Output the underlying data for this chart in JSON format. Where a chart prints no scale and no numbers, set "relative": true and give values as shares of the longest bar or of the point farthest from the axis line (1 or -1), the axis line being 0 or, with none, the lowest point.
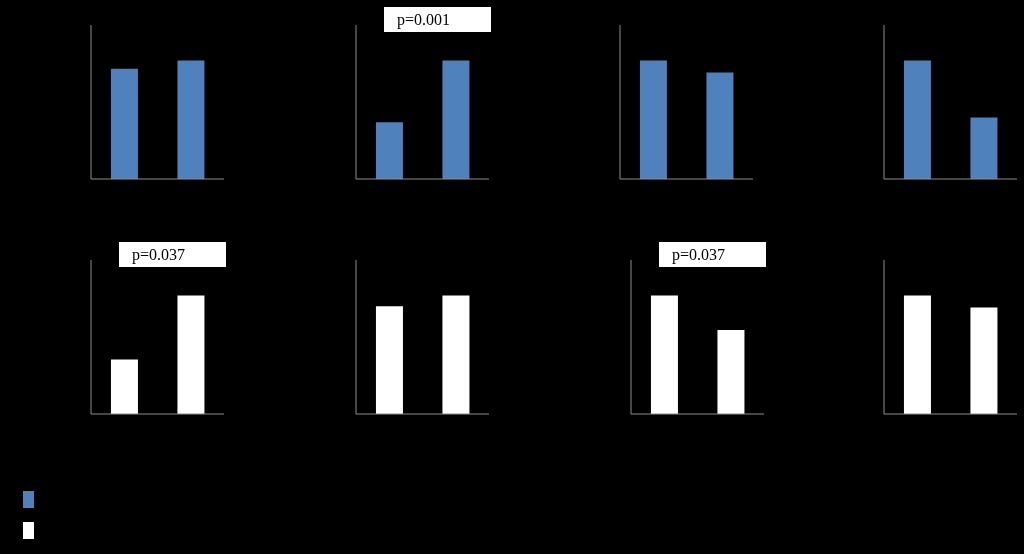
{
  "chart_data": [
    {
      "type": "bar",
      "categories": [
        null,
        null
      ],
      "values": [
        0.93,
        1
      ],
      "color": "#4f81bd",
      "relative": true
    },
    {
      "type": "bar",
      "categories": [
        null,
        null
      ],
      "values": [
        0.48,
        1
      ],
      "color": "#4f81bd",
      "relative": true,
      "annotations": [
        "p=0.001"
      ]
    },
    {
      "type": "bar",
      "categories": [
        null,
        null
      ],
      "values": [
        1,
        0.9
      ],
      "color": "#4f81bd",
      "relative": true
    },
    {
      "type": "bar",
      "categories": [
        null,
        null
      ],
      "values": [
        1,
        0.52
      ],
      "color": "#4f81bd",
      "relative": true
    },
    {
      "type": "bar",
      "categories": [
        null,
        null
      ],
      "values": [
        0.46,
        1
      ],
      "color": "#ffffff",
      "relative": true,
      "annotations": [
        "p=0.037"
      ]
    },
    {
      "type": "bar",
      "categories": [
        null,
        null
      ],
      "values": [
        0.91,
        1
      ],
      "color": "#ffffff",
      "relative": true
    },
    {
      "type": "bar",
      "categories": [
        null,
        null
      ],
      "values": [
        1,
        0.71
      ],
      "color": "#ffffff",
      "relative": true,
      "annotations": [
        "p=0.037"
      ]
    },
    {
      "type": "bar",
      "categories": [
        null,
        null
      ],
      "values": [
        1,
        0.9
      ],
      "color": "#ffffff",
      "relative": true
    }
  ]
}
